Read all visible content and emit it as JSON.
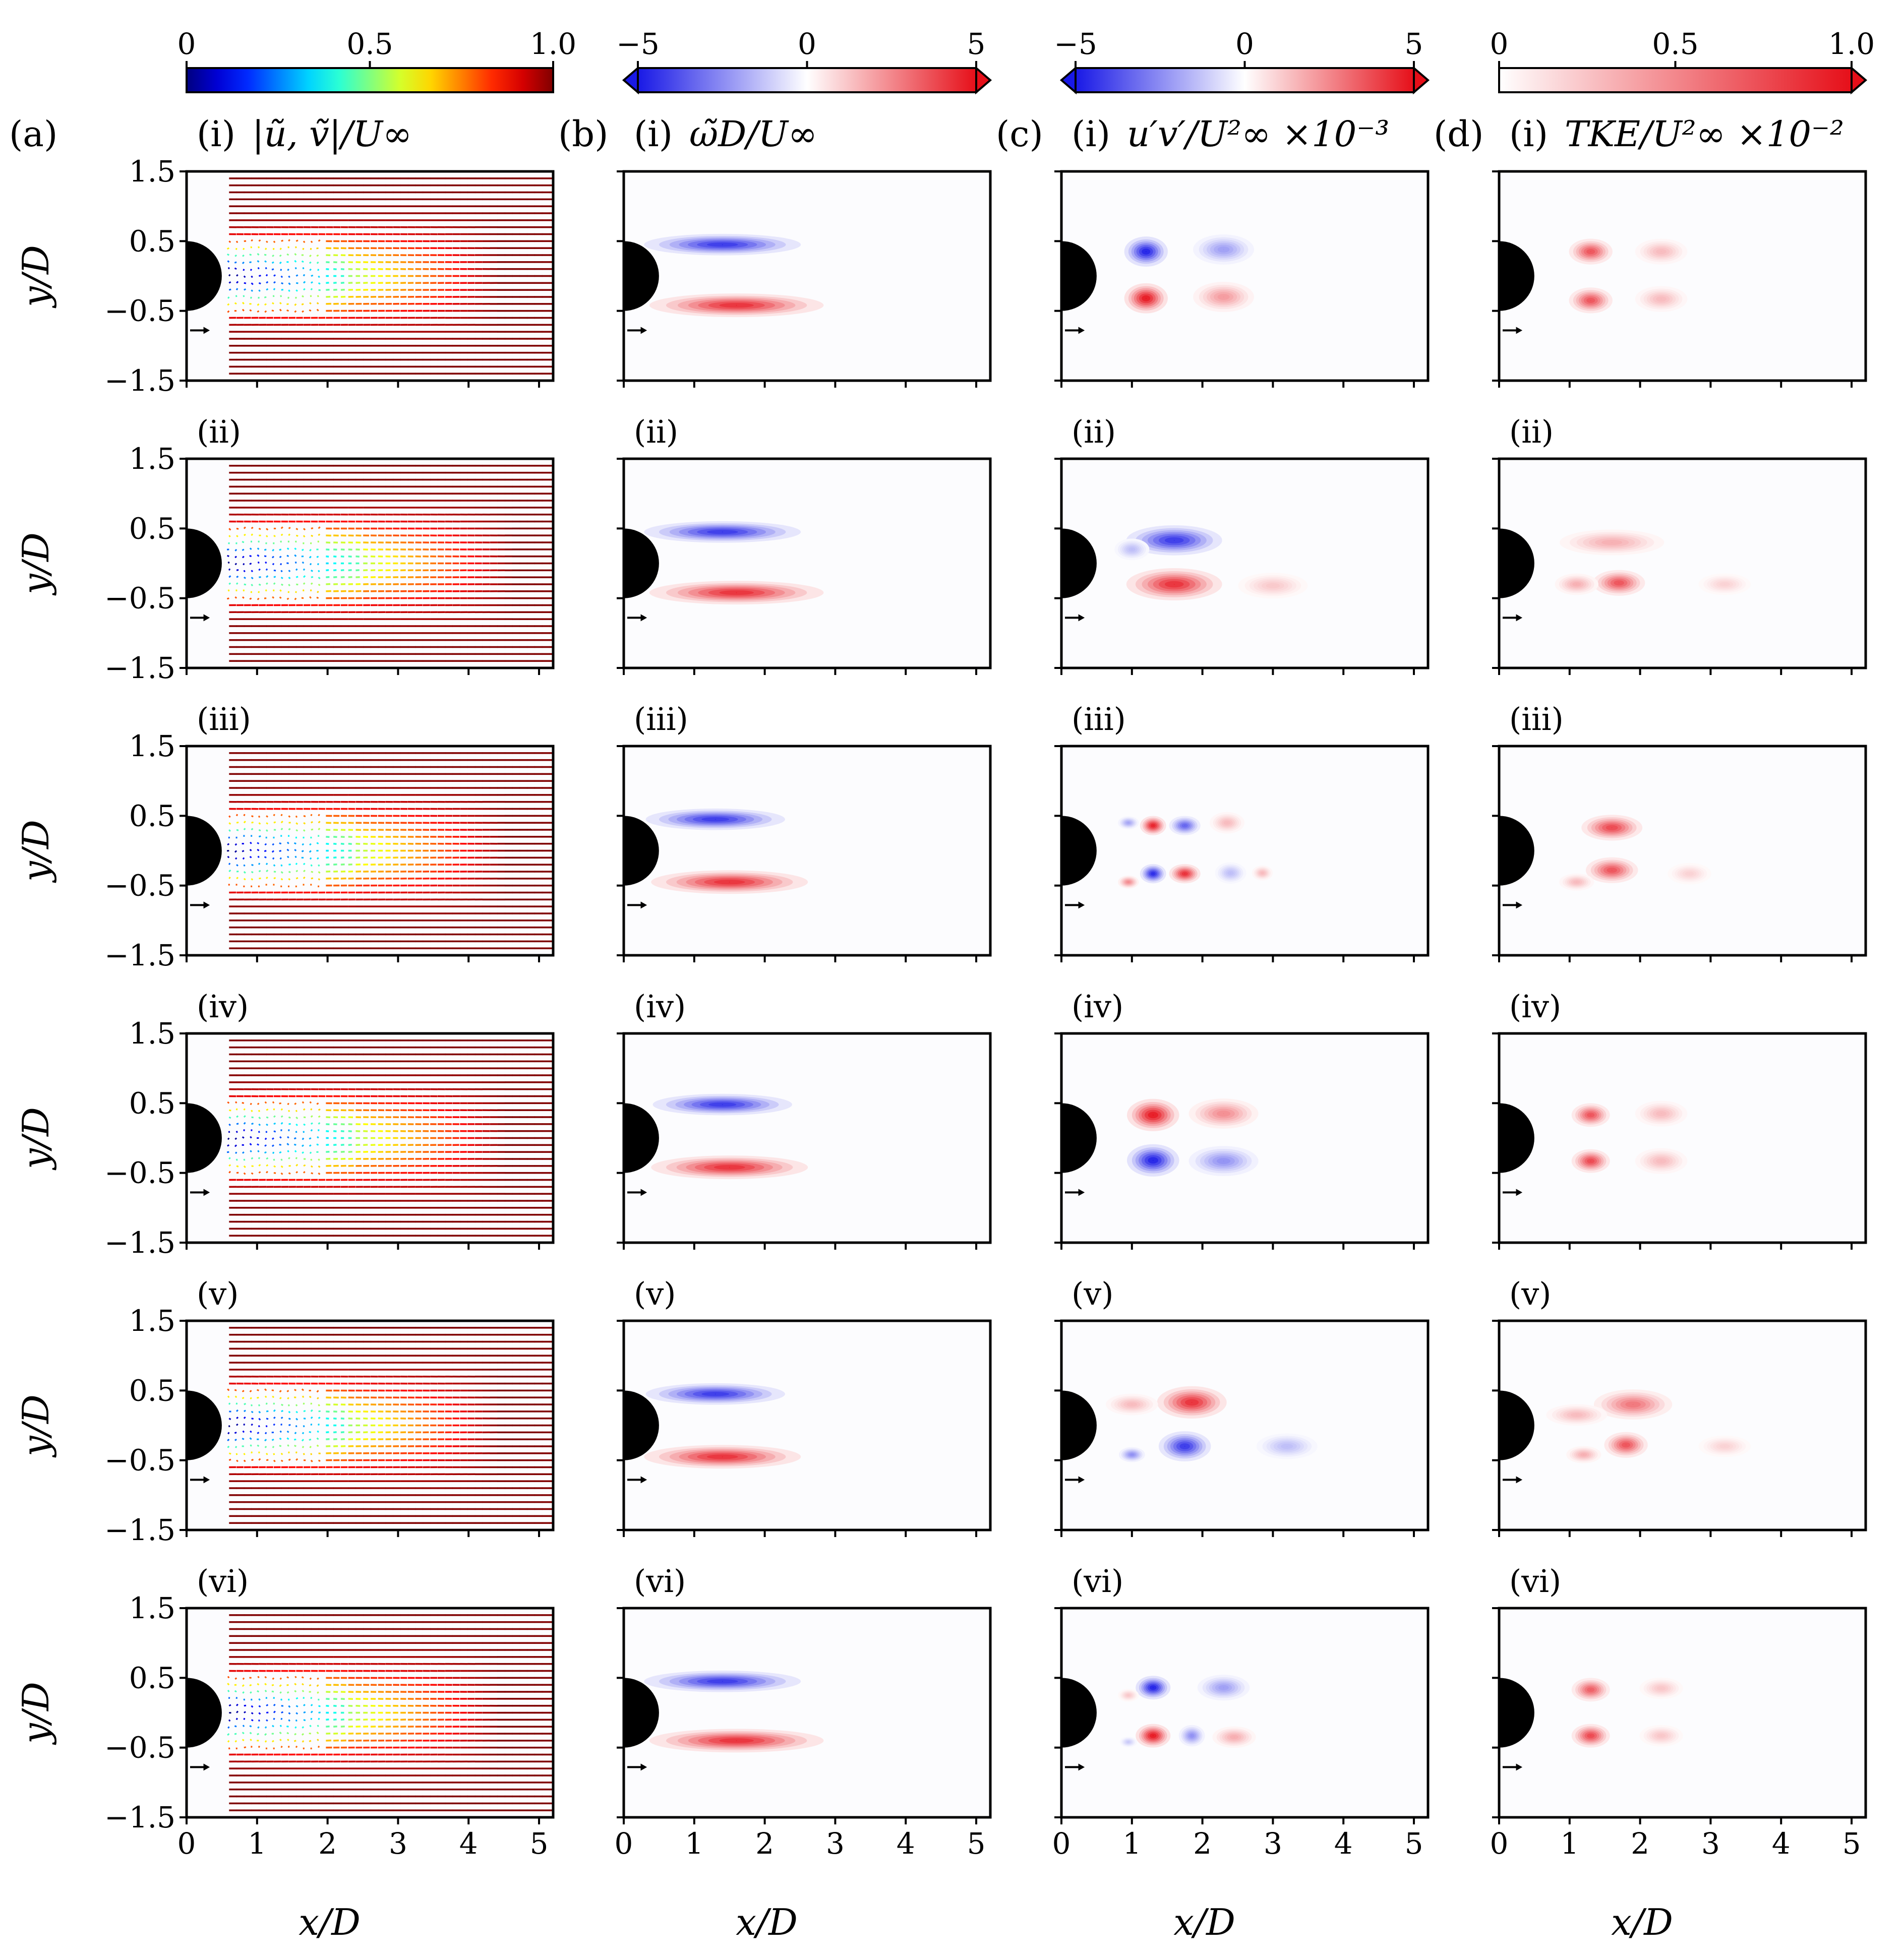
{
  "colors": {
    "black": "#000000",
    "pos_red": "#e8151b",
    "neg_blue": "#1a1ae6",
    "background": "#ffffff"
  },
  "colorbars": [
    {
      "type": "jet",
      "ticks": [
        "0",
        "0.5",
        "1.0"
      ],
      "range": [
        0,
        1.0
      ]
    },
    {
      "type": "bwr",
      "ticks": [
        "−5",
        "0",
        "5"
      ],
      "range": [
        -5,
        5
      ],
      "extend": "both"
    },
    {
      "type": "bwr",
      "ticks": [
        "−5",
        "0",
        "5"
      ],
      "range": [
        -5,
        5
      ],
      "extend": "both"
    },
    {
      "type": "reds",
      "ticks": [
        "0",
        "0.5",
        "1.0"
      ],
      "range": [
        0,
        1.0
      ],
      "extend": "max"
    }
  ],
  "columns": [
    {
      "letter": "(a)",
      "title": "|ũ, ṽ|/U∞"
    },
    {
      "letter": "(b)",
      "title": "ω̃D/U∞"
    },
    {
      "letter": "(c)",
      "title": "u′v′/U²∞ ×10⁻³"
    },
    {
      "letter": "(d)",
      "title": "TKE/U²∞ ×10⁻²"
    }
  ],
  "row_labels": [
    "(i)",
    "(ii)",
    "(iii)",
    "(iv)",
    "(v)",
    "(vi)"
  ],
  "axes": {
    "xlabel": "x/D",
    "ylabel": "y/D",
    "xticks": [
      "0",
      "1",
      "2",
      "3",
      "4",
      "5"
    ],
    "yticks": [
      "1.5",
      "0.5",
      "−0.5",
      "−1.5"
    ],
    "xlim": [
      0,
      5.2
    ],
    "ylim": [
      -1.5,
      1.5
    ]
  },
  "chart_data": [
    {
      "type": "heatmap",
      "title": "|ũ, ṽ|/U∞",
      "xlabel": "x/D",
      "ylabel": "y/D",
      "xlim": [
        0,
        5.2
      ],
      "ylim": [
        -1.5,
        1.5
      ],
      "colorbar_range": [
        0,
        1.0
      ],
      "phases": [
        "(i)",
        "(ii)",
        "(iii)",
        "(iv)",
        "(v)",
        "(vi)"
      ],
      "wake_min_speed": [
        0.0,
        0.0,
        0.0,
        0.0,
        0.0,
        0.0
      ],
      "wake_closure_x": [
        2.2,
        2.4,
        2.3,
        2.3,
        2.2,
        2.2
      ],
      "freestream_speed": 1.0
    },
    {
      "type": "heatmap",
      "title": "ω̃D/U∞",
      "xlabel": "x/D",
      "ylabel": "y/D",
      "xlim": [
        0,
        5.2
      ],
      "ylim": [
        -1.5,
        1.5
      ],
      "colorbar_range": [
        -5,
        5
      ],
      "blobs": [
        [
          {
            "x": 1.4,
            "y": 0.45,
            "sx": 0.9,
            "sy": 0.1,
            "v": -4.5
          },
          {
            "x": 1.6,
            "y": -0.42,
            "sx": 1.0,
            "sy": 0.11,
            "v": 4.5
          }
        ],
        [
          {
            "x": 1.4,
            "y": 0.45,
            "sx": 0.9,
            "sy": 0.1,
            "v": -4.5
          },
          {
            "x": 1.6,
            "y": -0.42,
            "sx": 1.0,
            "sy": 0.11,
            "v": 4.5
          }
        ],
        [
          {
            "x": 1.3,
            "y": 0.45,
            "sx": 0.8,
            "sy": 0.1,
            "v": -4.5
          },
          {
            "x": 1.5,
            "y": -0.45,
            "sx": 0.9,
            "sy": 0.11,
            "v": 4.5
          }
        ],
        [
          {
            "x": 1.4,
            "y": 0.48,
            "sx": 0.8,
            "sy": 0.1,
            "v": -4.5
          },
          {
            "x": 1.5,
            "y": -0.42,
            "sx": 0.9,
            "sy": 0.11,
            "v": 4.5
          }
        ],
        [
          {
            "x": 1.3,
            "y": 0.45,
            "sx": 0.8,
            "sy": 0.1,
            "v": -4.5
          },
          {
            "x": 1.4,
            "y": -0.45,
            "sx": 0.9,
            "sy": 0.11,
            "v": 4.5
          }
        ],
        [
          {
            "x": 1.4,
            "y": 0.45,
            "sx": 0.9,
            "sy": 0.1,
            "v": -4.5
          },
          {
            "x": 1.6,
            "y": -0.4,
            "sx": 1.0,
            "sy": 0.11,
            "v": 4.5
          }
        ]
      ]
    },
    {
      "type": "heatmap",
      "title": "u′v′/U²∞ ×10⁻³",
      "xlabel": "x/D",
      "ylabel": "y/D",
      "xlim": [
        0,
        5.2
      ],
      "ylim": [
        -1.5,
        1.5
      ],
      "colorbar_range": [
        -5,
        5
      ],
      "blobs": [
        [
          {
            "x": 1.2,
            "y": 0.35,
            "sx": 0.25,
            "sy": 0.14,
            "v": -5
          },
          {
            "x": 2.3,
            "y": 0.38,
            "sx": 0.35,
            "sy": 0.14,
            "v": -2.2
          },
          {
            "x": 1.2,
            "y": -0.32,
            "sx": 0.25,
            "sy": 0.14,
            "v": 5
          },
          {
            "x": 2.3,
            "y": -0.3,
            "sx": 0.35,
            "sy": 0.14,
            "v": 2.2
          }
        ],
        [
          {
            "x": 1.6,
            "y": 0.33,
            "sx": 0.55,
            "sy": 0.14,
            "v": -4.5
          },
          {
            "x": 1.0,
            "y": 0.2,
            "sx": 0.2,
            "sy": 0.1,
            "v": -1.5
          },
          {
            "x": 1.6,
            "y": -0.3,
            "sx": 0.55,
            "sy": 0.15,
            "v": 4.5
          },
          {
            "x": 3.0,
            "y": -0.32,
            "sx": 0.4,
            "sy": 0.12,
            "v": 1.2
          }
        ],
        [
          {
            "x": 1.3,
            "y": 0.36,
            "sx": 0.15,
            "sy": 0.09,
            "v": 4.8
          },
          {
            "x": 1.75,
            "y": 0.36,
            "sx": 0.18,
            "sy": 0.09,
            "v": -3.5
          },
          {
            "x": 0.95,
            "y": 0.4,
            "sx": 0.12,
            "sy": 0.06,
            "v": -2
          },
          {
            "x": 2.35,
            "y": 0.4,
            "sx": 0.2,
            "sy": 0.1,
            "v": 1.5
          },
          {
            "x": 1.3,
            "y": -0.33,
            "sx": 0.15,
            "sy": 0.09,
            "v": -4.8
          },
          {
            "x": 1.75,
            "y": -0.33,
            "sx": 0.18,
            "sy": 0.09,
            "v": 4.5
          },
          {
            "x": 0.95,
            "y": -0.45,
            "sx": 0.12,
            "sy": 0.06,
            "v": 2.5
          },
          {
            "x": 2.4,
            "y": -0.32,
            "sx": 0.18,
            "sy": 0.1,
            "v": -1.5
          },
          {
            "x": 2.85,
            "y": -0.32,
            "sx": 0.12,
            "sy": 0.07,
            "v": 1.5
          }
        ],
        [
          {
            "x": 1.3,
            "y": 0.33,
            "sx": 0.3,
            "sy": 0.15,
            "v": 5
          },
          {
            "x": 2.3,
            "y": 0.35,
            "sx": 0.4,
            "sy": 0.14,
            "v": 2.5
          },
          {
            "x": 1.3,
            "y": -0.32,
            "sx": 0.3,
            "sy": 0.15,
            "v": -5
          },
          {
            "x": 2.3,
            "y": -0.33,
            "sx": 0.4,
            "sy": 0.14,
            "v": -2.5
          }
        ],
        [
          {
            "x": 1.85,
            "y": 0.33,
            "sx": 0.4,
            "sy": 0.15,
            "v": 4.5
          },
          {
            "x": 1.0,
            "y": 0.3,
            "sx": 0.3,
            "sy": 0.1,
            "v": 1.5
          },
          {
            "x": 1.75,
            "y": -0.3,
            "sx": 0.3,
            "sy": 0.14,
            "v": -4.5
          },
          {
            "x": 1.0,
            "y": -0.42,
            "sx": 0.15,
            "sy": 0.07,
            "v": -2.5
          },
          {
            "x": 3.2,
            "y": -0.3,
            "sx": 0.35,
            "sy": 0.12,
            "v": -1.5
          }
        ],
        [
          {
            "x": 1.3,
            "y": 0.36,
            "sx": 0.2,
            "sy": 0.11,
            "v": -5
          },
          {
            "x": 2.3,
            "y": 0.36,
            "sx": 0.3,
            "sy": 0.12,
            "v": -2.2
          },
          {
            "x": 0.95,
            "y": 0.25,
            "sx": 0.12,
            "sy": 0.06,
            "v": 1.2
          },
          {
            "x": 1.3,
            "y": -0.33,
            "sx": 0.2,
            "sy": 0.11,
            "v": 5
          },
          {
            "x": 1.85,
            "y": -0.33,
            "sx": 0.15,
            "sy": 0.1,
            "v": -2.5
          },
          {
            "x": 2.45,
            "y": -0.35,
            "sx": 0.25,
            "sy": 0.1,
            "v": 1.8
          },
          {
            "x": 0.95,
            "y": -0.42,
            "sx": 0.1,
            "sy": 0.05,
            "v": -1.2
          }
        ]
      ]
    },
    {
      "type": "heatmap",
      "title": "TKE/U²∞ ×10⁻²",
      "xlabel": "x/D",
      "ylabel": "y/D",
      "xlim": [
        0,
        5.2
      ],
      "ylim": [
        -1.5,
        1.5
      ],
      "colorbar_range": [
        0,
        1.0
      ],
      "blobs": [
        [
          {
            "x": 1.3,
            "y": 0.35,
            "sx": 0.25,
            "sy": 0.12,
            "v": 0.75
          },
          {
            "x": 2.3,
            "y": 0.35,
            "sx": 0.3,
            "sy": 0.12,
            "v": 0.3
          },
          {
            "x": 1.3,
            "y": -0.35,
            "sx": 0.25,
            "sy": 0.12,
            "v": 0.75
          },
          {
            "x": 2.3,
            "y": -0.33,
            "sx": 0.3,
            "sy": 0.12,
            "v": 0.3
          }
        ],
        [
          {
            "x": 1.6,
            "y": 0.3,
            "sx": 0.6,
            "sy": 0.12,
            "v": 0.35
          },
          {
            "x": 1.7,
            "y": -0.28,
            "sx": 0.3,
            "sy": 0.12,
            "v": 0.75
          },
          {
            "x": 1.1,
            "y": -0.3,
            "sx": 0.25,
            "sy": 0.1,
            "v": 0.35
          },
          {
            "x": 3.2,
            "y": -0.3,
            "sx": 0.3,
            "sy": 0.1,
            "v": 0.2
          }
        ],
        [
          {
            "x": 1.6,
            "y": 0.33,
            "sx": 0.35,
            "sy": 0.12,
            "v": 0.8
          },
          {
            "x": 1.6,
            "y": -0.28,
            "sx": 0.3,
            "sy": 0.12,
            "v": 0.75
          },
          {
            "x": 1.1,
            "y": -0.45,
            "sx": 0.2,
            "sy": 0.08,
            "v": 0.3
          },
          {
            "x": 2.7,
            "y": -0.33,
            "sx": 0.25,
            "sy": 0.1,
            "v": 0.2
          }
        ],
        [
          {
            "x": 1.3,
            "y": 0.33,
            "sx": 0.22,
            "sy": 0.11,
            "v": 0.75
          },
          {
            "x": 2.3,
            "y": 0.35,
            "sx": 0.3,
            "sy": 0.12,
            "v": 0.3
          },
          {
            "x": 1.3,
            "y": -0.33,
            "sx": 0.22,
            "sy": 0.11,
            "v": 0.8
          },
          {
            "x": 2.3,
            "y": -0.33,
            "sx": 0.3,
            "sy": 0.12,
            "v": 0.3
          }
        ],
        [
          {
            "x": 1.9,
            "y": 0.3,
            "sx": 0.45,
            "sy": 0.14,
            "v": 0.6
          },
          {
            "x": 1.1,
            "y": 0.15,
            "sx": 0.35,
            "sy": 0.1,
            "v": 0.3
          },
          {
            "x": 1.8,
            "y": -0.28,
            "sx": 0.25,
            "sy": 0.12,
            "v": 0.75
          },
          {
            "x": 1.2,
            "y": -0.42,
            "sx": 0.2,
            "sy": 0.08,
            "v": 0.35
          },
          {
            "x": 3.2,
            "y": -0.3,
            "sx": 0.3,
            "sy": 0.1,
            "v": 0.2
          }
        ],
        [
          {
            "x": 1.3,
            "y": 0.33,
            "sx": 0.22,
            "sy": 0.11,
            "v": 0.7
          },
          {
            "x": 2.3,
            "y": 0.35,
            "sx": 0.25,
            "sy": 0.1,
            "v": 0.25
          },
          {
            "x": 1.3,
            "y": -0.33,
            "sx": 0.22,
            "sy": 0.11,
            "v": 0.8
          },
          {
            "x": 2.3,
            "y": -0.33,
            "sx": 0.25,
            "sy": 0.1,
            "v": 0.25
          }
        ]
      ]
    }
  ]
}
